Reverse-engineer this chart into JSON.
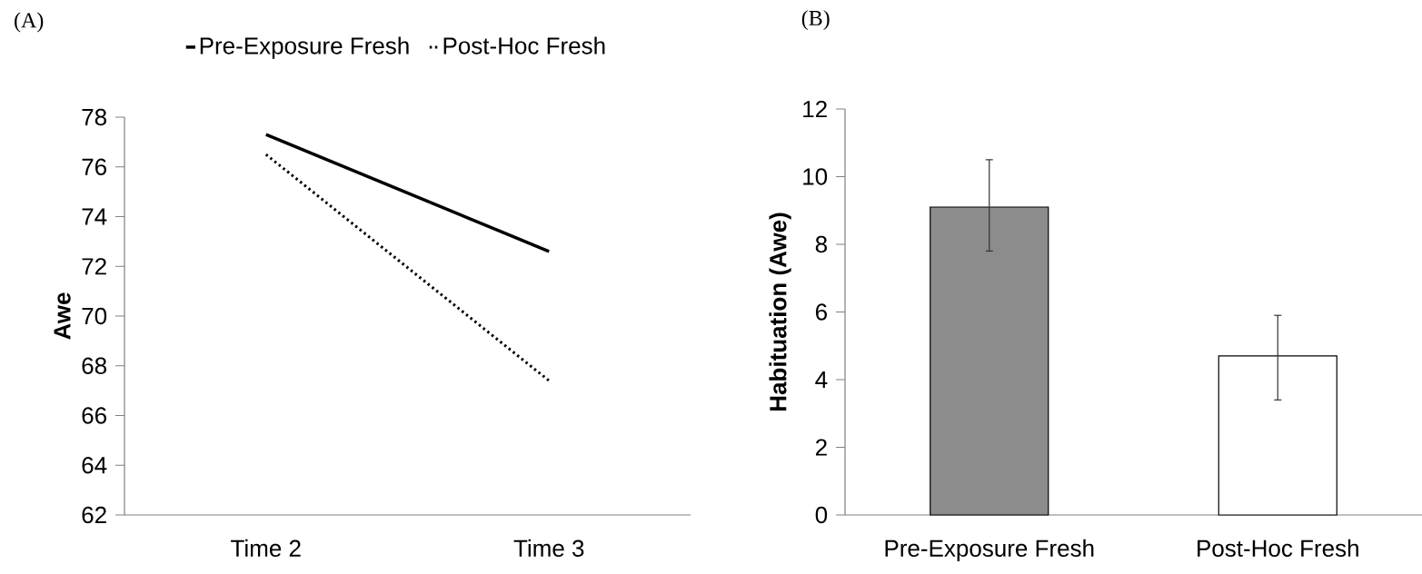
{
  "chart_data": [
    {
      "type": "line",
      "title": "(A)",
      "ylabel": "Awe",
      "categories": [
        "Time 2",
        "Time 3"
      ],
      "legend": "top",
      "marker": "none",
      "ylim": [
        62,
        78
      ],
      "yticks": [
        62,
        64,
        66,
        68,
        70,
        72,
        74,
        76,
        78
      ],
      "series": [
        {
          "name": "Pre-Exposure Fresh",
          "color": "#000000",
          "line_style": "solid",
          "values": [
            77.3,
            72.6
          ]
        },
        {
          "name": "Post-Hoc Fresh",
          "color": "#000000",
          "line_style": "dotted",
          "values": [
            76.5,
            67.4
          ]
        }
      ]
    },
    {
      "type": "bar",
      "title": "(B)",
      "ylabel": "Habituation (Awe)",
      "categories": [
        "Pre-Exposure Fresh",
        "Post-Hoc Fresh"
      ],
      "values": [
        9.1,
        4.7
      ],
      "colors": [
        "#8c8c8c",
        "#ffffff"
      ],
      "errors": [
        [
          7.8,
          10.5
        ],
        [
          3.4,
          5.9
        ]
      ],
      "ylim": [
        0,
        12
      ],
      "yticks": [
        0,
        2,
        4,
        6,
        8,
        10,
        12
      ]
    }
  ]
}
